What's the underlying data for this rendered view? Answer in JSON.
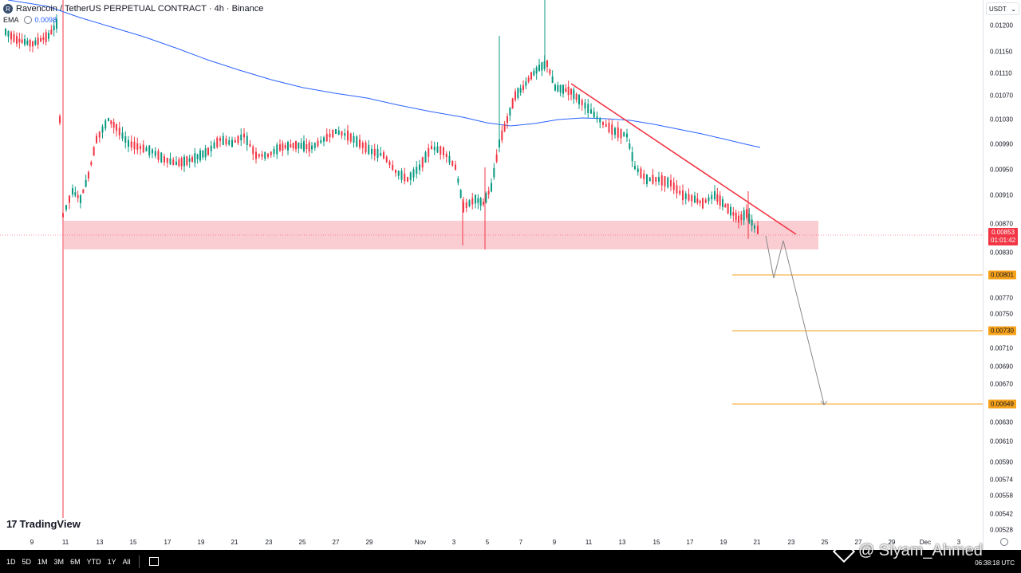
{
  "legend": {
    "symbol_icon": "ravencoin-coin-icon",
    "title": "Ravencoin / TetherUS PERPETUAL CONTRACT · 4h · Binance",
    "ema_label": "EMA",
    "ema_value": "0.0098"
  },
  "currency_selector": {
    "label": "USDT",
    "icon": "chevron-down-icon"
  },
  "price_axis": {
    "labels": [
      "0.01200",
      "0.01150",
      "0.01110",
      "0.01070",
      "0.01030",
      "0.00990",
      "0.00950",
      "0.00910",
      "0.00870",
      "0.00830",
      "0.00770",
      "0.00750",
      "0.00710",
      "0.00690",
      "0.00670",
      "0.00630",
      "0.00610",
      "0.00590",
      "0.00574",
      "0.00558",
      "0.00542",
      "0.00528"
    ],
    "current_price": "0.00853",
    "countdown": "01:01:42",
    "targets": [
      "0.00801",
      "0.00730",
      "0.00649"
    ]
  },
  "time_axis": {
    "labels": [
      "9",
      "11",
      "13",
      "15",
      "17",
      "19",
      "21",
      "23",
      "25",
      "27",
      "29",
      "Nov",
      "3",
      "5",
      "7",
      "9",
      "11",
      "13",
      "15",
      "17",
      "19",
      "21",
      "23",
      "25",
      "27",
      "29",
      "Dec",
      "3"
    ]
  },
  "logo": {
    "icon": "tradingview-logo-icon",
    "text": "TradingView"
  },
  "bottom_bar": {
    "timeframes": [
      "1D",
      "5D",
      "1M",
      "3M",
      "6M",
      "YTD",
      "1Y",
      "All"
    ],
    "calendar_icon": "calendar-range-icon",
    "clock": "06:38:18 UTC"
  },
  "watermark": {
    "text": "@ Siyam_Ahmed",
    "icon": "diamond-logo-icon"
  },
  "colors": {
    "up_candle": "#089981",
    "down_candle": "#f23645",
    "ema_line": "#2962ff",
    "trend_line": "#f23645",
    "zone_fill": "#f8bcc4",
    "target_line": "#f7a21b",
    "projection": "#888888"
  }
}
